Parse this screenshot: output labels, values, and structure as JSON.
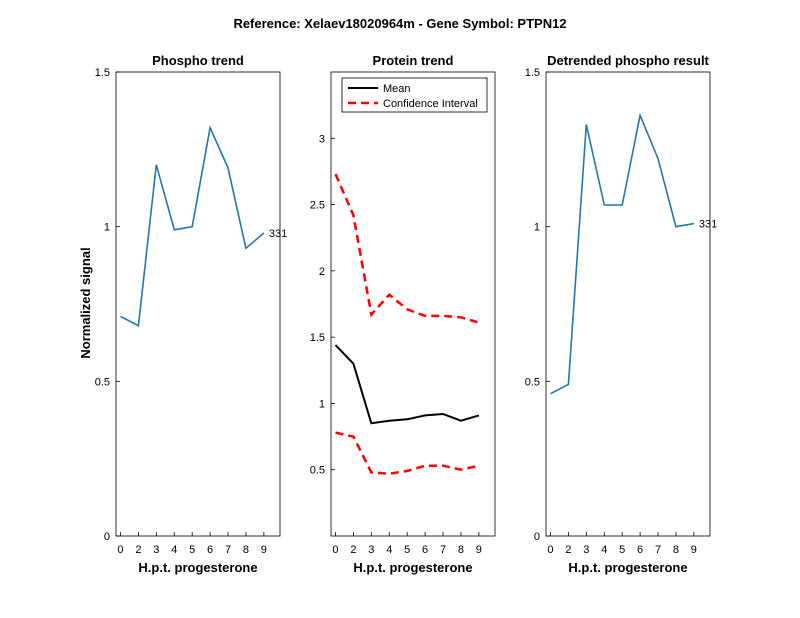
{
  "figure": {
    "suptitle": "Reference:  Xelaev18020964m - Gene Symbol:  PTPN12"
  },
  "chart_data": [
    {
      "type": "line",
      "title": "Phospho trend",
      "xlabel": "H.p.t. progesterone",
      "ylabel": "Normalized signal",
      "categories": [
        "0",
        "2",
        "3",
        "4",
        "5",
        "6",
        "7",
        "8",
        "9"
      ],
      "ylim": [
        0,
        1.5
      ],
      "yticks": [
        "0",
        "0.5",
        "1",
        "1.5"
      ],
      "series": [
        {
          "label": "331",
          "color": "#1f77b4",
          "values": [
            0.71,
            0.68,
            1.2,
            0.99,
            1.0,
            1.32,
            1.19,
            0.93,
            0.98
          ]
        }
      ]
    },
    {
      "type": "line",
      "title": "Protein trend",
      "xlabel": "H.p.t. progesterone",
      "categories": [
        "0",
        "2",
        "3",
        "4",
        "5",
        "6",
        "7",
        "8",
        "9"
      ],
      "ylim": [
        0,
        3.5
      ],
      "yticks": [
        "0.5",
        "1",
        "1.5",
        "2",
        "2.5",
        "3"
      ],
      "legend": {
        "position": "top-left",
        "entries": [
          "Mean",
          "Confidence Interval"
        ]
      },
      "series": [
        {
          "name": "Mean",
          "color": "#000000",
          "dashed": false,
          "values": [
            1.44,
            1.3,
            0.85,
            0.87,
            0.88,
            0.91,
            0.92,
            0.87,
            0.91
          ]
        },
        {
          "name": "Confidence Interval",
          "color": "#ff0000",
          "dashed": true,
          "values": [
            2.73,
            2.42,
            1.67,
            1.82,
            1.71,
            1.66,
            1.66,
            1.65,
            1.61
          ]
        },
        {
          "name": "Confidence Interval",
          "color": "#ff0000",
          "dashed": true,
          "legend": false,
          "values": [
            0.78,
            0.75,
            0.48,
            0.47,
            0.49,
            0.53,
            0.53,
            0.5,
            0.53
          ]
        }
      ]
    },
    {
      "type": "line",
      "title": "Detrended phospho result",
      "xlabel": "H.p.t. progesterone",
      "categories": [
        "0",
        "2",
        "3",
        "4",
        "5",
        "6",
        "7",
        "8",
        "9"
      ],
      "ylim": [
        0,
        1.5
      ],
      "yticks": [
        "0",
        "0.5",
        "1",
        "1.5"
      ],
      "series": [
        {
          "label": "331",
          "color": "#1f77b4",
          "values": [
            0.46,
            0.49,
            1.33,
            1.07,
            1.07,
            1.36,
            1.22,
            1.0,
            1.01
          ]
        }
      ]
    }
  ]
}
